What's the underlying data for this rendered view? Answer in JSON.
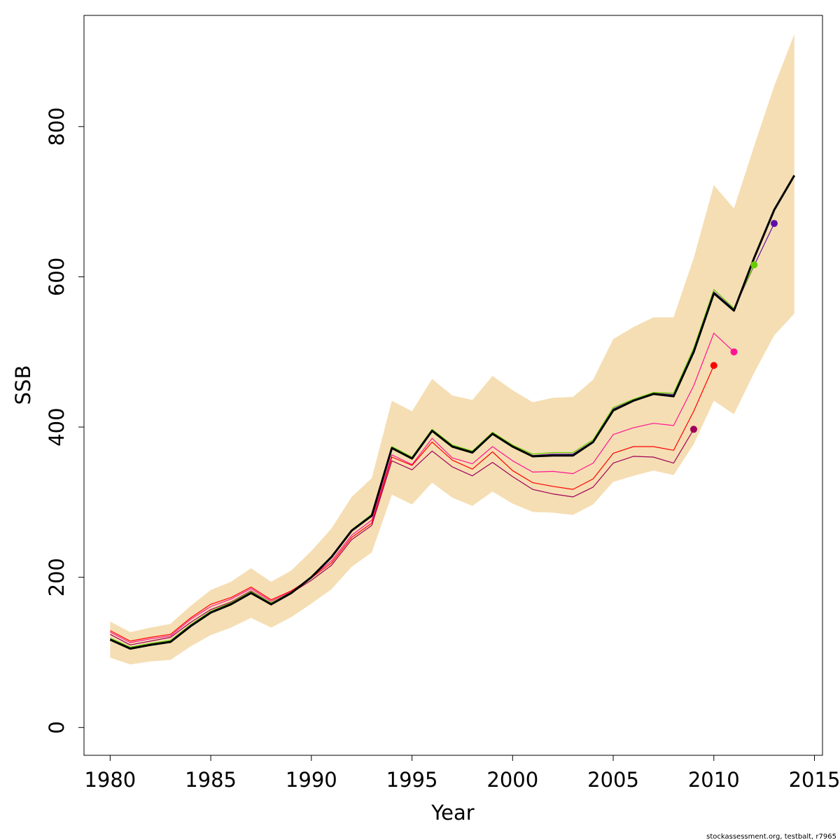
{
  "chart_data": {
    "type": "line",
    "title": "",
    "xlabel": "Year",
    "ylabel": "SSB",
    "xlim": [
      1978.7,
      2015.4
    ],
    "ylim": [
      -37,
      948
    ],
    "x_ticks": [
      1980,
      1985,
      1990,
      1995,
      2000,
      2005,
      2010,
      2015
    ],
    "x_tick_labels": [
      "1980",
      "1985",
      "1990",
      "1995",
      "2000",
      "2005",
      "2010",
      "2015"
    ],
    "y_ticks": [
      0,
      200,
      400,
      600,
      800
    ],
    "y_tick_labels": [
      "0",
      "200",
      "400",
      "600",
      "800"
    ],
    "grid": false,
    "footer": "stockassessment.org, testbalt, r7965",
    "band": {
      "color": "#F5DEB3",
      "x": [
        1980,
        1981,
        1982,
        1983,
        1984,
        1985,
        1986,
        1987,
        1988,
        1989,
        1990,
        1991,
        1992,
        1993,
        1994,
        1995,
        1996,
        1997,
        1998,
        1999,
        2000,
        2001,
        2002,
        2003,
        2004,
        2005,
        2006,
        2007,
        2008,
        2009,
        2010,
        2011,
        2012,
        2013,
        2014
      ],
      "lower": [
        93,
        84,
        88,
        90,
        108,
        123,
        133,
        146,
        133,
        147,
        165,
        184,
        214,
        233,
        310,
        297,
        326,
        306,
        295,
        314,
        298,
        287,
        286,
        283,
        297,
        327,
        335,
        342,
        336,
        377,
        435,
        417,
        472,
        522,
        551
      ],
      "upper": [
        141,
        127,
        133,
        138,
        162,
        183,
        194,
        212,
        194,
        209,
        235,
        265,
        307,
        332,
        435,
        421,
        464,
        442,
        436,
        468,
        449,
        433,
        439,
        440,
        463,
        517,
        533,
        546,
        546,
        625,
        722,
        691,
        774,
        854,
        923
      ]
    },
    "series": [
      {
        "color": "#000000",
        "width": 3,
        "x": [
          1980,
          1981,
          1982,
          1983,
          1984,
          1985,
          1986,
          1987,
          1988,
          1989,
          1990,
          1991,
          1992,
          1993,
          1994,
          1995,
          1996,
          1997,
          1998,
          1999,
          2000,
          2001,
          2002,
          2003,
          2004,
          2005,
          2006,
          2007,
          2008,
          2009,
          2010,
          2011,
          2012,
          2013,
          2014
        ],
        "values": [
          117,
          105,
          110,
          114,
          135,
          153,
          164,
          179,
          164,
          179,
          200,
          227,
          262,
          282,
          372,
          358,
          395,
          374,
          366,
          391,
          374,
          361,
          362,
          362,
          380,
          422,
          435,
          444,
          441,
          500,
          578,
          555,
          625,
          689,
          735
        ]
      },
      {
        "color": "#66CC00",
        "width": 1.3,
        "x": [
          1980,
          1981,
          1982,
          1983,
          1984,
          1985,
          1986,
          1987,
          1988,
          1989,
          1990,
          1991,
          1992,
          1993,
          1994,
          1995,
          1996,
          1997,
          1998,
          1999,
          2000,
          2001,
          2002,
          2003,
          2004,
          2005,
          2006,
          2007,
          2008,
          2009,
          2010,
          2011,
          2012
        ],
        "values": [
          119,
          107,
          112,
          116,
          137,
          155,
          166,
          181,
          166,
          180,
          201,
          228,
          263,
          284,
          374,
          360,
          397,
          376,
          368,
          393,
          376,
          364,
          366,
          366,
          383,
          426,
          437,
          446,
          445,
          505,
          583,
          558,
          616
        ],
        "end_point": true
      },
      {
        "color": "#5F0FA8",
        "width": 1.2,
        "x": [
          1980,
          1981,
          1982,
          1983,
          1984,
          1985,
          1986,
          1987,
          1988,
          1989,
          1990,
          1991,
          1992,
          1993,
          1994,
          1995,
          1996,
          1997,
          1998,
          1999,
          2000,
          2001,
          2002,
          2003,
          2004,
          2005,
          2006,
          2007,
          2008,
          2009,
          2010,
          2011,
          2012,
          2013
        ],
        "values": [
          118,
          106,
          111,
          115,
          136,
          154,
          165,
          180,
          165,
          180,
          201,
          228,
          263,
          283,
          373,
          359,
          396,
          375,
          367,
          392,
          375,
          362,
          364,
          364,
          381,
          424,
          436,
          445,
          443,
          502,
          580,
          557,
          615,
          671
        ],
        "end_point": true
      },
      {
        "color": "#FF1493",
        "width": 1.2,
        "x": [
          1980,
          1981,
          1982,
          1983,
          1984,
          1985,
          1986,
          1987,
          1988,
          1989,
          1990,
          1991,
          1992,
          1993,
          1994,
          1995,
          1996,
          1997,
          1998,
          1999,
          2000,
          2001,
          2002,
          2003,
          2004,
          2005,
          2006,
          2007,
          2008,
          2009,
          2010,
          2011
        ],
        "values": [
          127,
          113,
          118,
          122,
          144,
          161,
          171,
          185,
          168,
          181,
          200,
          222,
          256,
          276,
          363,
          350,
          385,
          359,
          351,
          374,
          355,
          340,
          341,
          338,
          352,
          390,
          399,
          405,
          402,
          455,
          525,
          500
        ],
        "end_point": true
      },
      {
        "color": "#FF0000",
        "width": 1.2,
        "x": [
          1980,
          1981,
          1982,
          1983,
          1984,
          1985,
          1986,
          1987,
          1988,
          1989,
          1990,
          1991,
          1992,
          1993,
          1994,
          1995,
          1996,
          1997,
          1998,
          1999,
          2000,
          2001,
          2002,
          2003,
          2004,
          2005,
          2006,
          2007,
          2008,
          2009,
          2010
        ],
        "values": [
          129,
          115,
          120,
          124,
          146,
          164,
          173,
          187,
          170,
          182,
          199,
          219,
          253,
          272,
          360,
          349,
          380,
          356,
          344,
          367,
          342,
          326,
          321,
          317,
          331,
          365,
          374,
          374,
          369,
          421,
          482
        ],
        "end_point": true
      },
      {
        "color": "#A0005A",
        "width": 1.2,
        "x": [
          1980,
          1981,
          1982,
          1983,
          1984,
          1985,
          1986,
          1987,
          1988,
          1989,
          1990,
          1991,
          1992,
          1993,
          1994,
          1995,
          1996,
          1997,
          1998,
          1999,
          2000,
          2001,
          2002,
          2003,
          2004,
          2005,
          2006,
          2007,
          2008,
          2009
        ],
        "values": [
          124,
          110,
          115,
          120,
          140,
          157,
          167,
          182,
          166,
          179,
          196,
          216,
          250,
          269,
          355,
          343,
          368,
          347,
          335,
          353,
          334,
          317,
          311,
          307,
          320,
          352,
          361,
          360,
          352,
          397
        ],
        "end_point": true
      }
    ]
  }
}
